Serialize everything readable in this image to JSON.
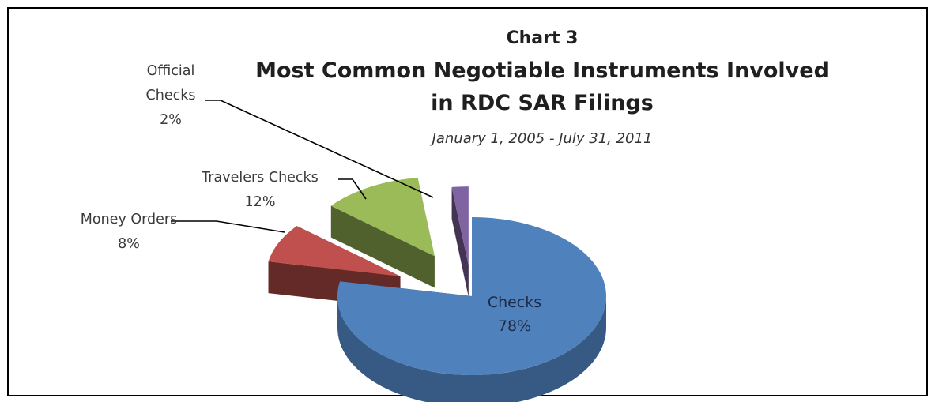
{
  "chart_data": {
    "type": "pie",
    "chart_number": "Chart 3",
    "title_lines": [
      "Most Common Negotiable Instruments Involved",
      "in RDC SAR Filings"
    ],
    "subtitle": "January 1, 2005 - July 31, 2011",
    "slices": [
      {
        "label": "Checks",
        "value": 78,
        "value_label": "78%",
        "color": "#4f81bd"
      },
      {
        "label": "Money Orders",
        "value": 8,
        "value_label": "8%",
        "color": "#c0504d"
      },
      {
        "label": "Travelers Checks",
        "value": 12,
        "value_label": "12%",
        "color": "#9bbb59"
      },
      {
        "label": "Official Checks",
        "value": 2,
        "value_label": "2%",
        "color": "#8064a2"
      }
    ],
    "style": "3d-exploded-pie",
    "legend": "none"
  }
}
